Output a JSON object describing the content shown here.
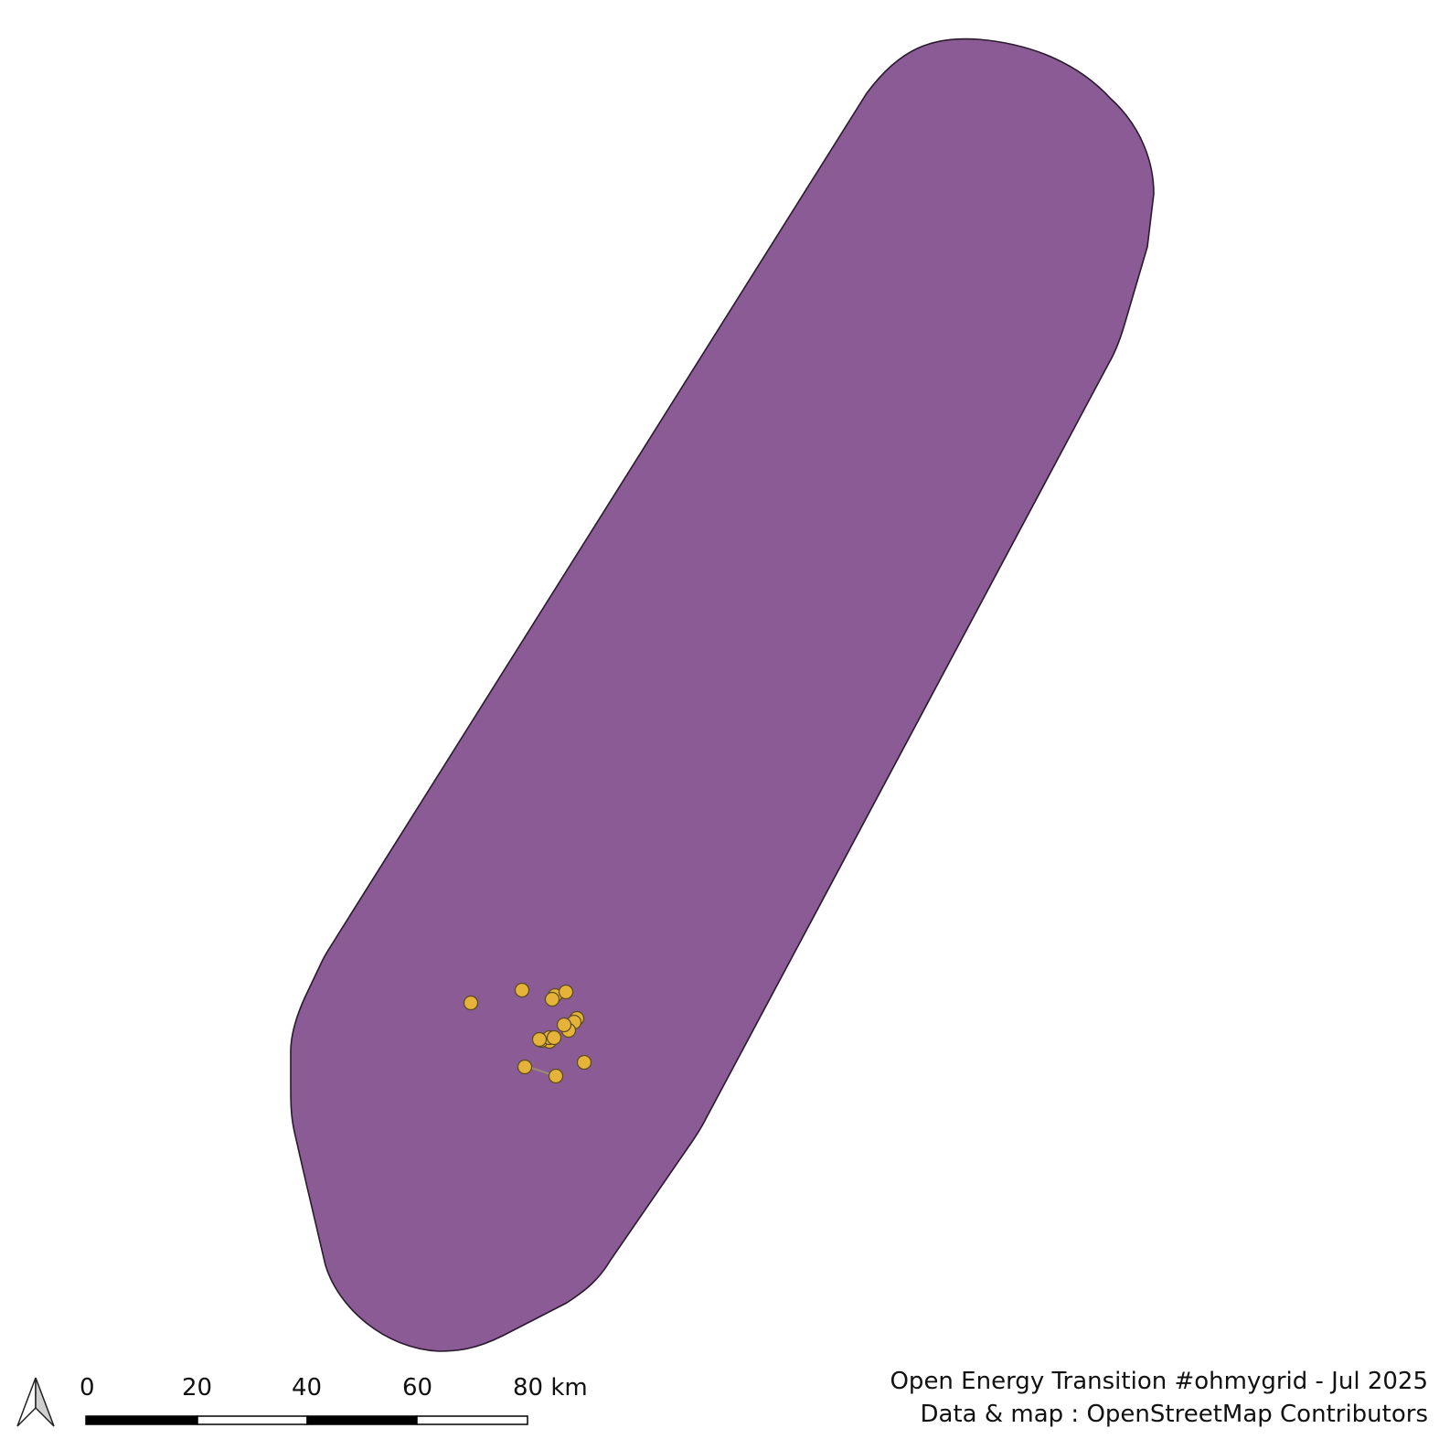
{
  "map": {
    "area_fill": "#8b5b96",
    "area_stroke": "#2a1a2e",
    "point_fill": "#e5b33a",
    "point_stroke": "#5a4a1a",
    "point_count": 17
  },
  "scale_bar": {
    "labels": [
      "0",
      "20",
      "40",
      "60",
      "80 km"
    ],
    "colors": [
      "#000000",
      "#ffffff"
    ]
  },
  "credits": {
    "line1": "Open Energy Transition #ohmygrid - Jul 2025",
    "line2": "Data & map : OpenStreetMap Contributors"
  },
  "icons": {
    "north_arrow": "north-arrow-icon"
  }
}
